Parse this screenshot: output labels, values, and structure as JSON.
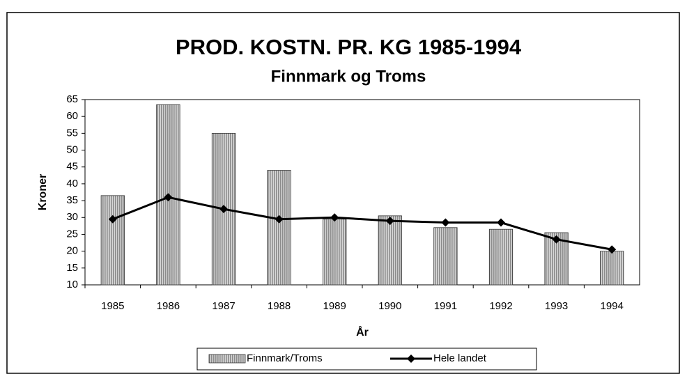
{
  "chart_data": {
    "type": "bar",
    "title": "PROD. KOSTN. PR. KG 1985-1994",
    "subtitle": "Finnmark og Troms",
    "x_label": "År",
    "y_label": "Kroner",
    "categories": [
      "1985",
      "1986",
      "1987",
      "1988",
      "1989",
      "1990",
      "1991",
      "1992",
      "1993",
      "1994"
    ],
    "series": [
      {
        "name": "Finnmark/Troms",
        "type": "bar",
        "color": "#8c8c8c",
        "values": [
          36.5,
          63.5,
          55,
          44,
          29.5,
          30.5,
          27,
          26.5,
          25.5,
          20
        ]
      },
      {
        "name": "Hele landet",
        "type": "line",
        "color": "#000000",
        "values": [
          29.5,
          36,
          32.5,
          29.5,
          30,
          29,
          28.5,
          28.5,
          23.5,
          20.5
        ]
      }
    ],
    "ylim": [
      10,
      65
    ],
    "yticks": [
      10,
      15,
      20,
      25,
      30,
      35,
      40,
      45,
      50,
      55,
      60,
      65
    ],
    "grid": false,
    "legend": "bottom"
  }
}
